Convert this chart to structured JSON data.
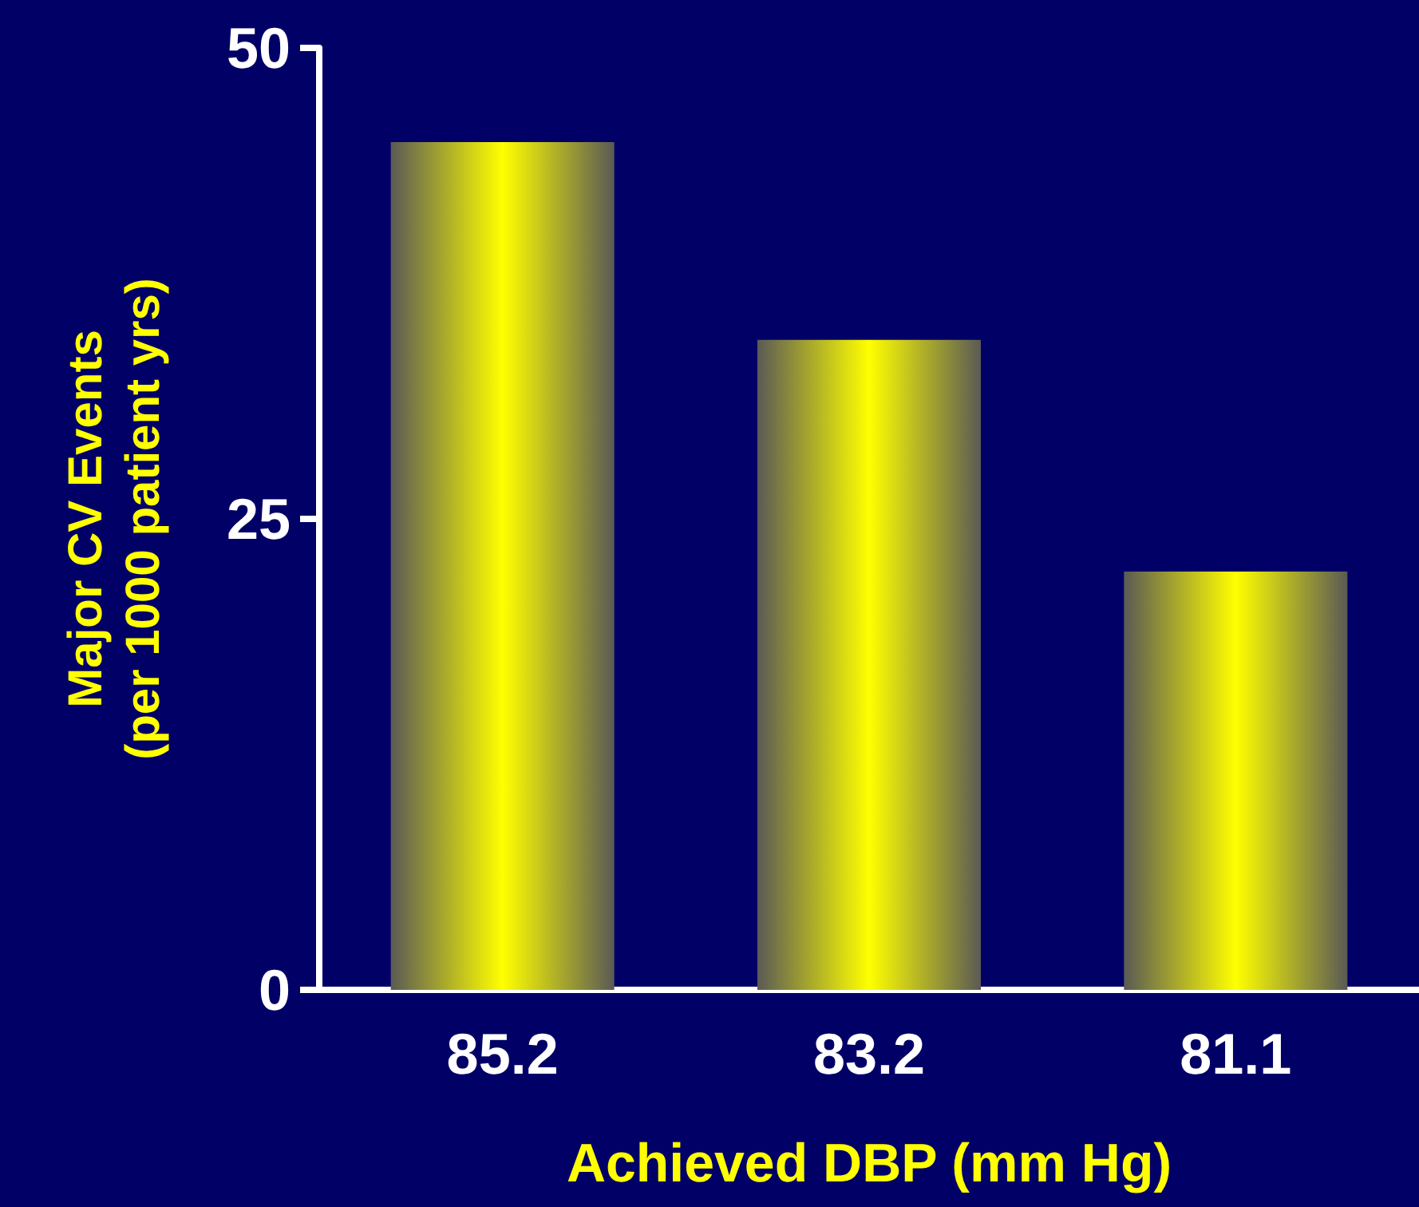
{
  "chart_data": {
    "type": "bar",
    "xlabel": "Achieved DBP (mm Hg)",
    "ylabel": "Major CV Events\n(per 1000 patient yrs)",
    "categories": [
      "85.2",
      "83.2",
      "81.1"
    ],
    "values": [
      45,
      34.5,
      22.2
    ],
    "color": "#ffff00",
    "ylim": [
      0,
      50
    ],
    "yticks": [
      0,
      25,
      50
    ],
    "grid": false
  }
}
